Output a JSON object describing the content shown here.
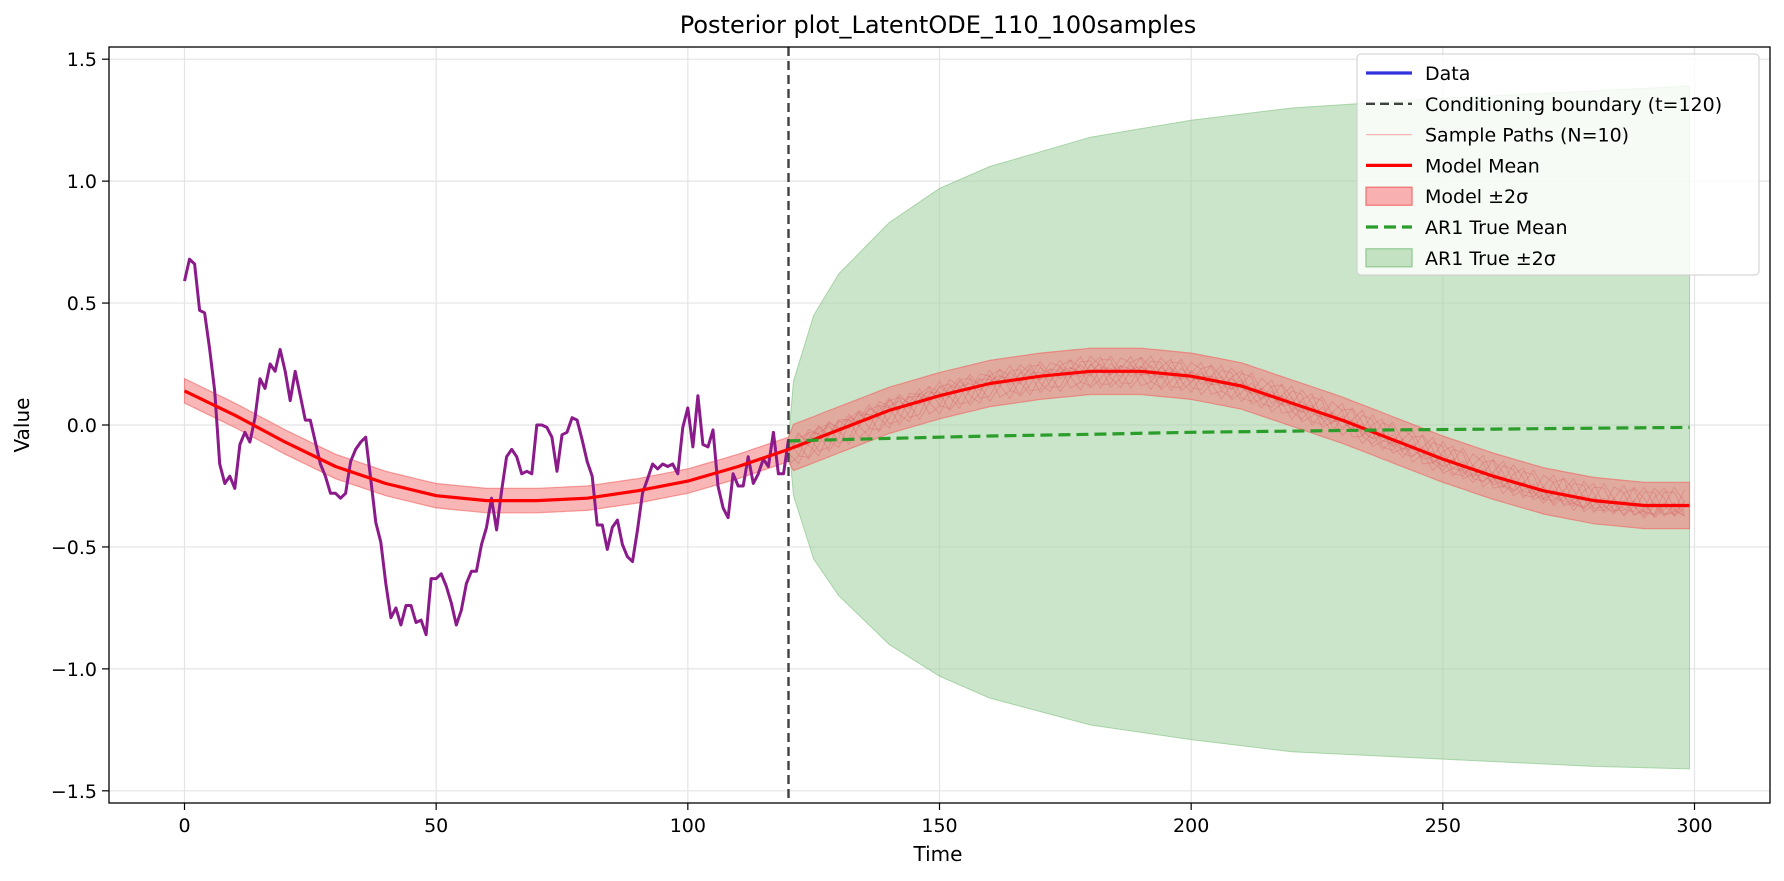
{
  "chart_data": {
    "type": "line",
    "title": "Posterior plot_LatentODE_110_100samples",
    "xlabel": "Time",
    "ylabel": "Value",
    "xlim": [
      -15,
      315
    ],
    "ylim": [
      -1.55,
      1.55
    ],
    "x_ticks": [
      0,
      50,
      100,
      150,
      200,
      250,
      300
    ],
    "y_ticks": [
      -1.5,
      -1.0,
      -0.5,
      0.0,
      0.5,
      1.0,
      1.5
    ],
    "x_tick_labels": [
      "0",
      "50",
      "100",
      "150",
      "200",
      "250",
      "300"
    ],
    "y_tick_labels": [
      "−1.5",
      "−1.0",
      "−0.5",
      "0.0",
      "0.5",
      "1.0",
      "1.5"
    ],
    "grid": true,
    "legend_position": "top-right",
    "conditioning_boundary": 120,
    "legend": [
      {
        "label": "Data",
        "kind": "line",
        "color": "#3333dd"
      },
      {
        "label": "Conditioning boundary (t=120)",
        "kind": "dashed",
        "color": "#404040"
      },
      {
        "label": "Sample Paths (N=10)",
        "kind": "thin",
        "color": "#f4b4b4"
      },
      {
        "label": "Model Mean",
        "kind": "line",
        "color": "#ff0000"
      },
      {
        "label": "Model ±2σ",
        "kind": "patch",
        "color": "#f08080"
      },
      {
        "label": "AR1 True Mean",
        "kind": "dashed-green",
        "color": "#2a9d2a"
      },
      {
        "label": "AR1 True ±2σ",
        "kind": "patch-green",
        "color": "#b8dcb8"
      }
    ],
    "series": [
      {
        "name": "Data",
        "color": "#8b1a8b",
        "points": [
          [
            0,
            0.59
          ],
          [
            1,
            0.68
          ],
          [
            2,
            0.66
          ],
          [
            3,
            0.47
          ],
          [
            4,
            0.46
          ],
          [
            5,
            0.31
          ],
          [
            6,
            0.14
          ],
          [
            7,
            -0.16
          ],
          [
            8,
            -0.24
          ],
          [
            9,
            -0.21
          ],
          [
            10,
            -0.26
          ],
          [
            11,
            -0.08
          ],
          [
            12,
            -0.03
          ],
          [
            13,
            -0.07
          ],
          [
            14,
            0.03
          ],
          [
            15,
            0.19
          ],
          [
            16,
            0.15
          ],
          [
            17,
            0.25
          ],
          [
            18,
            0.22
          ],
          [
            19,
            0.31
          ],
          [
            20,
            0.22
          ],
          [
            21,
            0.1
          ],
          [
            22,
            0.22
          ],
          [
            23,
            0.12
          ],
          [
            24,
            0.02
          ],
          [
            25,
            0.02
          ],
          [
            26,
            -0.07
          ],
          [
            27,
            -0.16
          ],
          [
            28,
            -0.21
          ],
          [
            29,
            -0.28
          ],
          [
            30,
            -0.28
          ],
          [
            31,
            -0.3
          ],
          [
            32,
            -0.28
          ],
          [
            33,
            -0.15
          ],
          [
            34,
            -0.1
          ],
          [
            35,
            -0.07
          ],
          [
            36,
            -0.05
          ],
          [
            37,
            -0.22
          ],
          [
            38,
            -0.4
          ],
          [
            39,
            -0.48
          ],
          [
            40,
            -0.65
          ],
          [
            41,
            -0.79
          ],
          [
            42,
            -0.75
          ],
          [
            43,
            -0.82
          ],
          [
            44,
            -0.74
          ],
          [
            45,
            -0.74
          ],
          [
            46,
            -0.81
          ],
          [
            47,
            -0.8
          ],
          [
            48,
            -0.86
          ],
          [
            49,
            -0.63
          ],
          [
            50,
            -0.63
          ],
          [
            51,
            -0.61
          ],
          [
            52,
            -0.66
          ],
          [
            53,
            -0.73
          ],
          [
            54,
            -0.82
          ],
          [
            55,
            -0.76
          ],
          [
            56,
            -0.65
          ],
          [
            57,
            -0.6
          ],
          [
            58,
            -0.6
          ],
          [
            59,
            -0.49
          ],
          [
            60,
            -0.42
          ],
          [
            61,
            -0.3
          ],
          [
            62,
            -0.43
          ],
          [
            63,
            -0.27
          ],
          [
            64,
            -0.13
          ],
          [
            65,
            -0.1
          ],
          [
            66,
            -0.13
          ],
          [
            67,
            -0.2
          ],
          [
            68,
            -0.19
          ],
          [
            69,
            -0.2
          ],
          [
            70,
            0.0
          ],
          [
            71,
            0.0
          ],
          [
            72,
            -0.01
          ],
          [
            73,
            -0.05
          ],
          [
            74,
            -0.19
          ],
          [
            75,
            -0.04
          ],
          [
            76,
            -0.03
          ],
          [
            77,
            0.03
          ],
          [
            78,
            0.02
          ],
          [
            79,
            -0.06
          ],
          [
            80,
            -0.15
          ],
          [
            81,
            -0.21
          ],
          [
            82,
            -0.41
          ],
          [
            83,
            -0.41
          ],
          [
            84,
            -0.51
          ],
          [
            85,
            -0.42
          ],
          [
            86,
            -0.39
          ],
          [
            87,
            -0.49
          ],
          [
            88,
            -0.54
          ],
          [
            89,
            -0.56
          ],
          [
            90,
            -0.43
          ],
          [
            91,
            -0.28
          ],
          [
            92,
            -0.22
          ],
          [
            93,
            -0.16
          ],
          [
            94,
            -0.18
          ],
          [
            95,
            -0.16
          ],
          [
            96,
            -0.17
          ],
          [
            97,
            -0.16
          ],
          [
            98,
            -0.2
          ],
          [
            99,
            -0.01
          ],
          [
            100,
            0.07
          ],
          [
            101,
            -0.09
          ],
          [
            102,
            0.12
          ],
          [
            103,
            -0.08
          ],
          [
            104,
            -0.09
          ],
          [
            105,
            -0.02
          ],
          [
            106,
            -0.25
          ],
          [
            107,
            -0.34
          ],
          [
            108,
            -0.38
          ],
          [
            109,
            -0.2
          ],
          [
            110,
            -0.25
          ],
          [
            111,
            -0.25
          ],
          [
            112,
            -0.13
          ],
          [
            113,
            -0.24
          ],
          [
            114,
            -0.2
          ],
          [
            115,
            -0.14
          ],
          [
            116,
            -0.17
          ],
          [
            117,
            -0.03
          ],
          [
            118,
            -0.2
          ],
          [
            119,
            -0.2
          ],
          [
            120,
            -0.06
          ]
        ]
      },
      {
        "name": "Model Mean",
        "color": "#ff0000",
        "points": [
          [
            0,
            0.14
          ],
          [
            10,
            0.04
          ],
          [
            20,
            -0.07
          ],
          [
            30,
            -0.17
          ],
          [
            40,
            -0.24
          ],
          [
            50,
            -0.29
          ],
          [
            60,
            -0.31
          ],
          [
            70,
            -0.31
          ],
          [
            80,
            -0.3
          ],
          [
            90,
            -0.27
          ],
          [
            100,
            -0.23
          ],
          [
            110,
            -0.17
          ],
          [
            120,
            -0.1
          ],
          [
            130,
            -0.02
          ],
          [
            140,
            0.06
          ],
          [
            150,
            0.12
          ],
          [
            160,
            0.17
          ],
          [
            170,
            0.2
          ],
          [
            180,
            0.22
          ],
          [
            190,
            0.22
          ],
          [
            200,
            0.2
          ],
          [
            210,
            0.16
          ],
          [
            220,
            0.09
          ],
          [
            230,
            0.02
          ],
          [
            240,
            -0.06
          ],
          [
            250,
            -0.14
          ],
          [
            260,
            -0.21
          ],
          [
            270,
            -0.27
          ],
          [
            280,
            -0.31
          ],
          [
            290,
            -0.33
          ],
          [
            299,
            -0.33
          ]
        ]
      },
      {
        "name": "AR1 True Mean",
        "color": "#2a9d2a",
        "points": [
          [
            120,
            -0.065
          ],
          [
            140,
            -0.055
          ],
          [
            160,
            -0.045
          ],
          [
            180,
            -0.038
          ],
          [
            200,
            -0.03
          ],
          [
            220,
            -0.025
          ],
          [
            240,
            -0.02
          ],
          [
            260,
            -0.017
          ],
          [
            280,
            -0.013
          ],
          [
            299,
            -0.01
          ]
        ]
      }
    ],
    "model_band_halfwidth": 0.05,
    "ar1_band": [
      [
        120,
        -0.06,
        -0.06
      ],
      [
        121,
        0.18,
        -0.29
      ],
      [
        125,
        0.45,
        -0.55
      ],
      [
        130,
        0.62,
        -0.7
      ],
      [
        140,
        0.83,
        -0.9
      ],
      [
        150,
        0.97,
        -1.03
      ],
      [
        160,
        1.06,
        -1.12
      ],
      [
        180,
        1.18,
        -1.23
      ],
      [
        200,
        1.25,
        -1.29
      ],
      [
        220,
        1.3,
        -1.34
      ],
      [
        250,
        1.34,
        -1.37
      ],
      [
        280,
        1.37,
        -1.4
      ],
      [
        299,
        1.39,
        -1.41
      ]
    ],
    "sample_paths_count": 10
  }
}
